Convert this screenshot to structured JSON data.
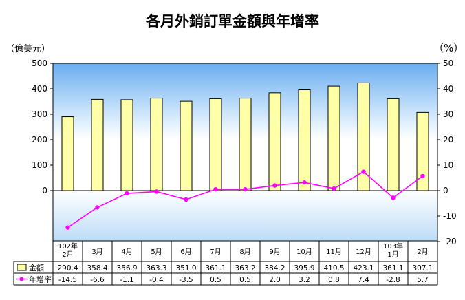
{
  "chart_data": {
    "type": "bar+line",
    "title": "各月外銷訂單金額與年增率",
    "left_axis_unit": "（億美元）",
    "right_axis_unit": "（%）",
    "left_ylim": [
      0,
      500
    ],
    "right_ylim": [
      -20,
      50
    ],
    "left_ticks": [
      "500",
      "400",
      "300",
      "200",
      "100",
      "0"
    ],
    "right_ticks": [
      "50",
      "40",
      "30",
      "20",
      "10",
      "0",
      "-10",
      "-20"
    ],
    "grid": false,
    "legend_placement": "table-left",
    "category_labels": [
      [
        "102年",
        "2月"
      ],
      [
        "3月"
      ],
      [
        "4月"
      ],
      [
        "5月"
      ],
      [
        "6月"
      ],
      [
        "7月"
      ],
      [
        "8月"
      ],
      [
        "9月"
      ],
      [
        "10月"
      ],
      [
        "11月"
      ],
      [
        "12月"
      ],
      [
        "103年",
        "1月"
      ],
      [
        "2月"
      ]
    ],
    "series": [
      {
        "name": "金額",
        "kind": "bar",
        "axis": "left",
        "color": "#ffffa8",
        "values": [
          290.4,
          358.4,
          356.9,
          363.3,
          351.0,
          361.1,
          363.2,
          384.2,
          395.9,
          410.5,
          423.1,
          361.1,
          307.1
        ],
        "labels": [
          "290.4",
          "358.4",
          "356.9",
          "363.3",
          "351.0",
          "361.1",
          "363.2",
          "384.2",
          "395.9",
          "410.5",
          "423.1",
          "361.1",
          "307.1"
        ]
      },
      {
        "name": "年增率",
        "kind": "line",
        "axis": "right",
        "color": "#ff00ff",
        "values": [
          -14.5,
          -6.6,
          -1.1,
          -0.4,
          -3.5,
          0.5,
          0.5,
          2.0,
          3.2,
          0.8,
          7.4,
          -2.8,
          5.7
        ],
        "labels": [
          "-14.5",
          "-6.6",
          "-1.1",
          "-0.4",
          "-3.5",
          "0.5",
          "0.5",
          "2.0",
          "3.2",
          "0.8",
          "7.4",
          "-2.8",
          "5.7"
        ]
      }
    ]
  },
  "colors": {
    "plot_top": "#6aaef0",
    "plot_mid": "#ffffff",
    "bar_stroke": "#000000",
    "line": "#ff00ff"
  }
}
